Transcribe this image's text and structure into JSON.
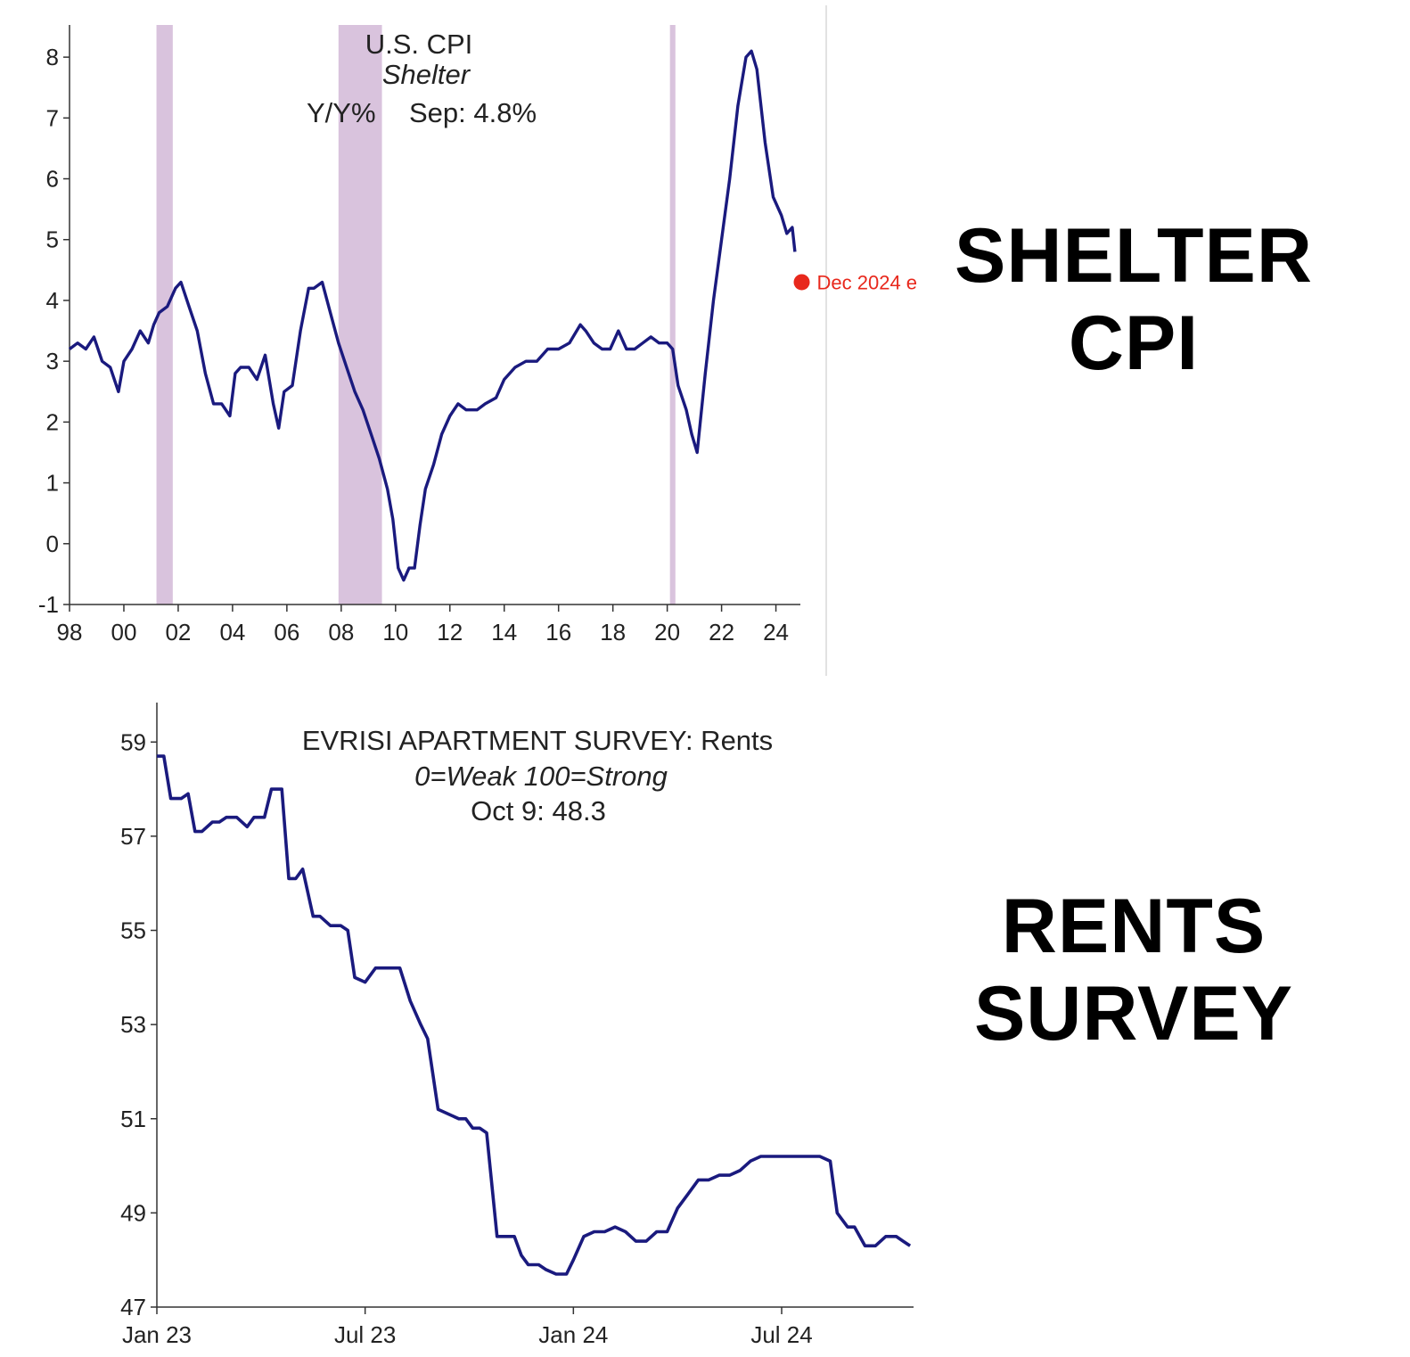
{
  "side_labels": {
    "top_line1": "SHELTER",
    "top_line2": "CPI",
    "bottom_line1": "RENTS",
    "bottom_line2": "SURVEY"
  },
  "colors": {
    "line": "#1a1a7e",
    "recession": "#d9c3dd",
    "marker": "#e8281c",
    "axis": "#333333"
  },
  "chart_data": [
    {
      "type": "line",
      "title": "U.S. CPI",
      "subtitle": "Shelter",
      "ylabel": "Y/Y%",
      "annotation": "Sep: 4.8%",
      "marker_label": "Dec 2024 e",
      "marker": {
        "x": 2024.95,
        "y": 4.3
      },
      "xlim": [
        1998,
        2024.9
      ],
      "ylim": [
        -1,
        8.5
      ],
      "xticks": [
        1998,
        2000,
        2002,
        2004,
        2006,
        2008,
        2010,
        2012,
        2014,
        2016,
        2018,
        2020,
        2022,
        2024
      ],
      "xtick_labels": [
        "98",
        "00",
        "02",
        "04",
        "06",
        "08",
        "10",
        "12",
        "14",
        "16",
        "18",
        "20",
        "22",
        "24"
      ],
      "yticks": [
        -1,
        0,
        1,
        2,
        3,
        4,
        5,
        6,
        7,
        8
      ],
      "ytick_labels": [
        "-1",
        "0",
        "1",
        "2",
        "3",
        "4",
        "5",
        "6",
        "7",
        "8"
      ],
      "recessions": [
        [
          2001.2,
          2001.8
        ],
        [
          2007.9,
          2009.5
        ],
        [
          2020.1,
          2020.3
        ]
      ],
      "series": [
        {
          "x": [
            1998.0,
            1998.3,
            1998.6,
            1998.9,
            1999.2,
            1999.5,
            1999.8,
            2000.0,
            2000.3,
            2000.6,
            2000.9,
            2001.1,
            2001.3,
            2001.6,
            2001.9,
            2002.1,
            2002.4,
            2002.7,
            2003.0,
            2003.3,
            2003.6,
            2003.9,
            2004.1,
            2004.3,
            2004.6,
            2004.9,
            2005.2,
            2005.5,
            2005.7,
            2005.9,
            2006.2,
            2006.5,
            2006.8,
            2007.0,
            2007.3,
            2007.6,
            2007.9,
            2008.2,
            2008.5,
            2008.8,
            2009.1,
            2009.4,
            2009.7,
            2009.9,
            2010.1,
            2010.3,
            2010.5,
            2010.7,
            2010.9,
            2011.1,
            2011.4,
            2011.7,
            2012.0,
            2012.3,
            2012.6,
            2013.0,
            2013.3,
            2013.7,
            2014.0,
            2014.4,
            2014.8,
            2015.2,
            2015.6,
            2016.0,
            2016.4,
            2016.8,
            2017.0,
            2017.3,
            2017.6,
            2017.9,
            2018.2,
            2018.5,
            2018.8,
            2019.1,
            2019.4,
            2019.7,
            2020.0,
            2020.2,
            2020.4,
            2020.7,
            2020.9,
            2021.1,
            2021.4,
            2021.7,
            2022.0,
            2022.3,
            2022.6,
            2022.9,
            2023.1,
            2023.3,
            2023.6,
            2023.9,
            2024.2,
            2024.4,
            2024.6,
            2024.7
          ],
          "y": [
            3.2,
            3.3,
            3.2,
            3.4,
            3.0,
            2.9,
            2.5,
            3.0,
            3.2,
            3.5,
            3.3,
            3.6,
            3.8,
            3.9,
            4.2,
            4.3,
            3.9,
            3.5,
            2.8,
            2.3,
            2.3,
            2.1,
            2.8,
            2.9,
            2.9,
            2.7,
            3.1,
            2.3,
            1.9,
            2.5,
            2.6,
            3.5,
            4.2,
            4.2,
            4.3,
            3.8,
            3.3,
            2.9,
            2.5,
            2.2,
            1.8,
            1.4,
            0.9,
            0.4,
            -0.4,
            -0.6,
            -0.4,
            -0.4,
            0.3,
            0.9,
            1.3,
            1.8,
            2.1,
            2.3,
            2.2,
            2.2,
            2.3,
            2.4,
            2.7,
            2.9,
            3.0,
            3.0,
            3.2,
            3.2,
            3.3,
            3.6,
            3.5,
            3.3,
            3.2,
            3.2,
            3.5,
            3.2,
            3.2,
            3.3,
            3.4,
            3.3,
            3.3,
            3.2,
            2.6,
            2.2,
            1.8,
            1.5,
            2.8,
            4.0,
            5.0,
            6.0,
            7.2,
            8.0,
            8.1,
            7.8,
            6.6,
            5.7,
            5.4,
            5.1,
            5.2,
            4.8
          ]
        }
      ]
    },
    {
      "type": "line",
      "title": "EVRISI APARTMENT SURVEY: Rents",
      "subtitle": "0=Weak  100=Strong",
      "annotation": "Oct 9: 48.3",
      "xlim": [
        0,
        21.8
      ],
      "ylim": [
        47,
        59.8
      ],
      "xticks": [
        0,
        6,
        12,
        18
      ],
      "xtick_labels": [
        "Jan 23",
        "Jul 23",
        "Jan 24",
        "Jul 24"
      ],
      "yticks": [
        47,
        49,
        51,
        53,
        55,
        57,
        59
      ],
      "ytick_labels": [
        "47",
        "49",
        "51",
        "53",
        "55",
        "57",
        "59"
      ],
      "series": [
        {
          "x": [
            0.0,
            0.2,
            0.4,
            0.7,
            0.9,
            1.1,
            1.3,
            1.6,
            1.8,
            2.0,
            2.3,
            2.6,
            2.8,
            3.1,
            3.3,
            3.6,
            3.8,
            4.0,
            4.2,
            4.5,
            4.7,
            5.0,
            5.3,
            5.5,
            5.7,
            6.0,
            6.3,
            6.6,
            7.0,
            7.3,
            7.6,
            7.8,
            8.1,
            8.4,
            8.7,
            8.9,
            9.1,
            9.3,
            9.5,
            9.8,
            10.1,
            10.3,
            10.5,
            10.7,
            11.0,
            11.2,
            11.5,
            11.8,
            12.0,
            12.3,
            12.6,
            12.9,
            13.2,
            13.5,
            13.8,
            14.1,
            14.4,
            14.7,
            15.0,
            15.3,
            15.6,
            15.9,
            16.2,
            16.5,
            16.8,
            17.1,
            17.4,
            17.7,
            18.0,
            18.4,
            18.8,
            19.1,
            19.4,
            19.6,
            19.9,
            20.1,
            20.4,
            20.7,
            21.0,
            21.3,
            21.5,
            21.7
          ],
          "y": [
            58.7,
            58.7,
            57.8,
            57.8,
            57.9,
            57.1,
            57.1,
            57.3,
            57.3,
            57.4,
            57.4,
            57.2,
            57.4,
            57.4,
            58.0,
            58.0,
            56.1,
            56.1,
            56.3,
            55.3,
            55.3,
            55.1,
            55.1,
            55.0,
            54.0,
            53.9,
            54.2,
            54.2,
            54.2,
            53.5,
            53.0,
            52.7,
            51.2,
            51.1,
            51.0,
            51.0,
            50.8,
            50.8,
            50.7,
            48.5,
            48.5,
            48.5,
            48.1,
            47.9,
            47.9,
            47.8,
            47.7,
            47.7,
            48.0,
            48.5,
            48.6,
            48.6,
            48.7,
            48.6,
            48.4,
            48.4,
            48.6,
            48.6,
            49.1,
            49.4,
            49.7,
            49.7,
            49.8,
            49.8,
            49.9,
            50.1,
            50.2,
            50.2,
            50.2,
            50.2,
            50.2,
            50.2,
            50.1,
            49.0,
            48.7,
            48.7,
            48.3,
            48.3,
            48.5,
            48.5,
            48.4,
            48.3
          ]
        }
      ]
    }
  ]
}
